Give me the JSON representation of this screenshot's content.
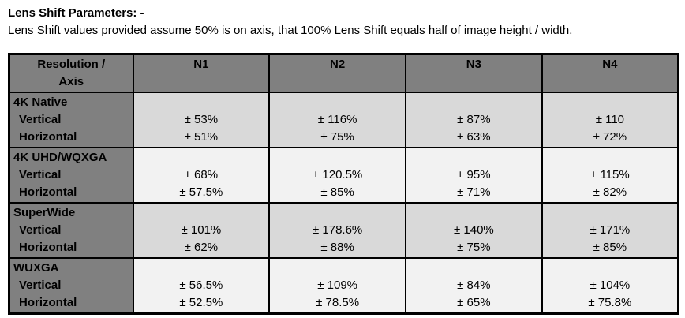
{
  "title": "Lens Shift Parameters: -",
  "subtitle": "Lens Shift values provided assume 50% is on axis, that 100% Lens Shift equals half of image height / width.",
  "table": {
    "header": {
      "col0_line1": "Resolution /",
      "col0_line2": "Axis",
      "cols": [
        "N1",
        "N2",
        "N3",
        "N4"
      ]
    },
    "groups": [
      {
        "name": "4K Native",
        "axis1": "Vertical",
        "axis2": "Horizontal",
        "vertical": [
          "± 53%",
          "± 116%",
          "± 87%",
          "± 110"
        ],
        "horizontal": [
          "± 51%",
          "± 75%",
          "± 63%",
          "± 72%"
        ]
      },
      {
        "name": "4K UHD/WQXGA",
        "axis1": "Vertical",
        "axis2": "Horizontal",
        "vertical": [
          "± 68%",
          "± 120.5%",
          "± 95%",
          "± 115%"
        ],
        "horizontal": [
          "± 57.5%",
          "± 85%",
          "± 71%",
          "± 82%"
        ]
      },
      {
        "name": "SuperWide",
        "axis1": "Vertical",
        "axis2": "Horizontal",
        "vertical": [
          "± 101%",
          "± 178.6%",
          "± 140%",
          "± 171%"
        ],
        "horizontal": [
          "± 62%",
          "± 88%",
          "± 75%",
          "± 85%"
        ]
      },
      {
        "name": "WUXGA",
        "axis1": "Vertical",
        "axis2": "Horizontal",
        "vertical": [
          "± 56.5%",
          "± 109%",
          "± 84%",
          "± 104%"
        ],
        "horizontal": [
          "± 52.5%",
          "± 78.5%",
          "± 65%",
          "± 75.8%"
        ]
      }
    ]
  },
  "colors": {
    "header_bg": "#808080",
    "label_column_bg": "#808080",
    "group_odd_bg": "#d9d9d9",
    "group_even_bg": "#f2f2f2",
    "border": "#000000",
    "text": "#000000",
    "page_bg": "#ffffff"
  }
}
